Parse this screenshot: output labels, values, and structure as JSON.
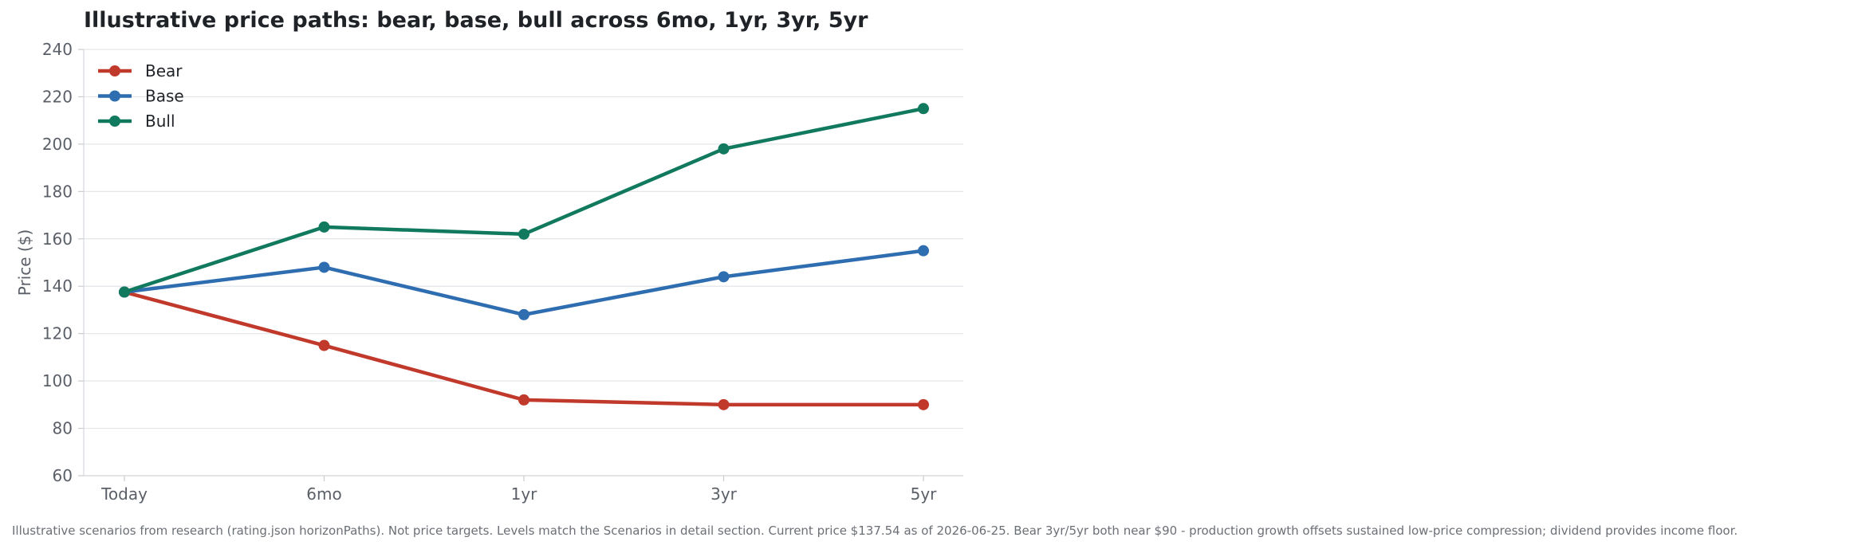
{
  "chart_data": {
    "type": "line",
    "title": "Illustrative price paths: bear, base, bull across 6mo, 1yr, 3yr, 5yr",
    "xlabel": "",
    "ylabel": "Price ($)",
    "categories": [
      "Today",
      "6mo",
      "1yr",
      "3yr",
      "5yr"
    ],
    "ylim": [
      60,
      240
    ],
    "yticks": [
      60,
      80,
      100,
      120,
      140,
      160,
      180,
      200,
      220,
      240
    ],
    "grid": true,
    "legend_position": "top-left",
    "series": [
      {
        "name": "Bear",
        "color": "#c0392b",
        "values": [
          137.54,
          115,
          92,
          90,
          90
        ]
      },
      {
        "name": "Base",
        "color": "#2e6db0",
        "values": [
          137.54,
          148,
          128,
          144,
          155
        ]
      },
      {
        "name": "Bull",
        "color": "#117a5e",
        "values": [
          137.54,
          165,
          162,
          198,
          215
        ]
      }
    ]
  },
  "footnote": "Illustrative scenarios from research (rating.json horizonPaths). Not price targets. Levels match the Scenarios in detail section. Current price $137.54 as of 2026-06-25. Bear 3yr/5yr both near $90 - production growth offsets sustained low-price compression; dividend provides income floor."
}
